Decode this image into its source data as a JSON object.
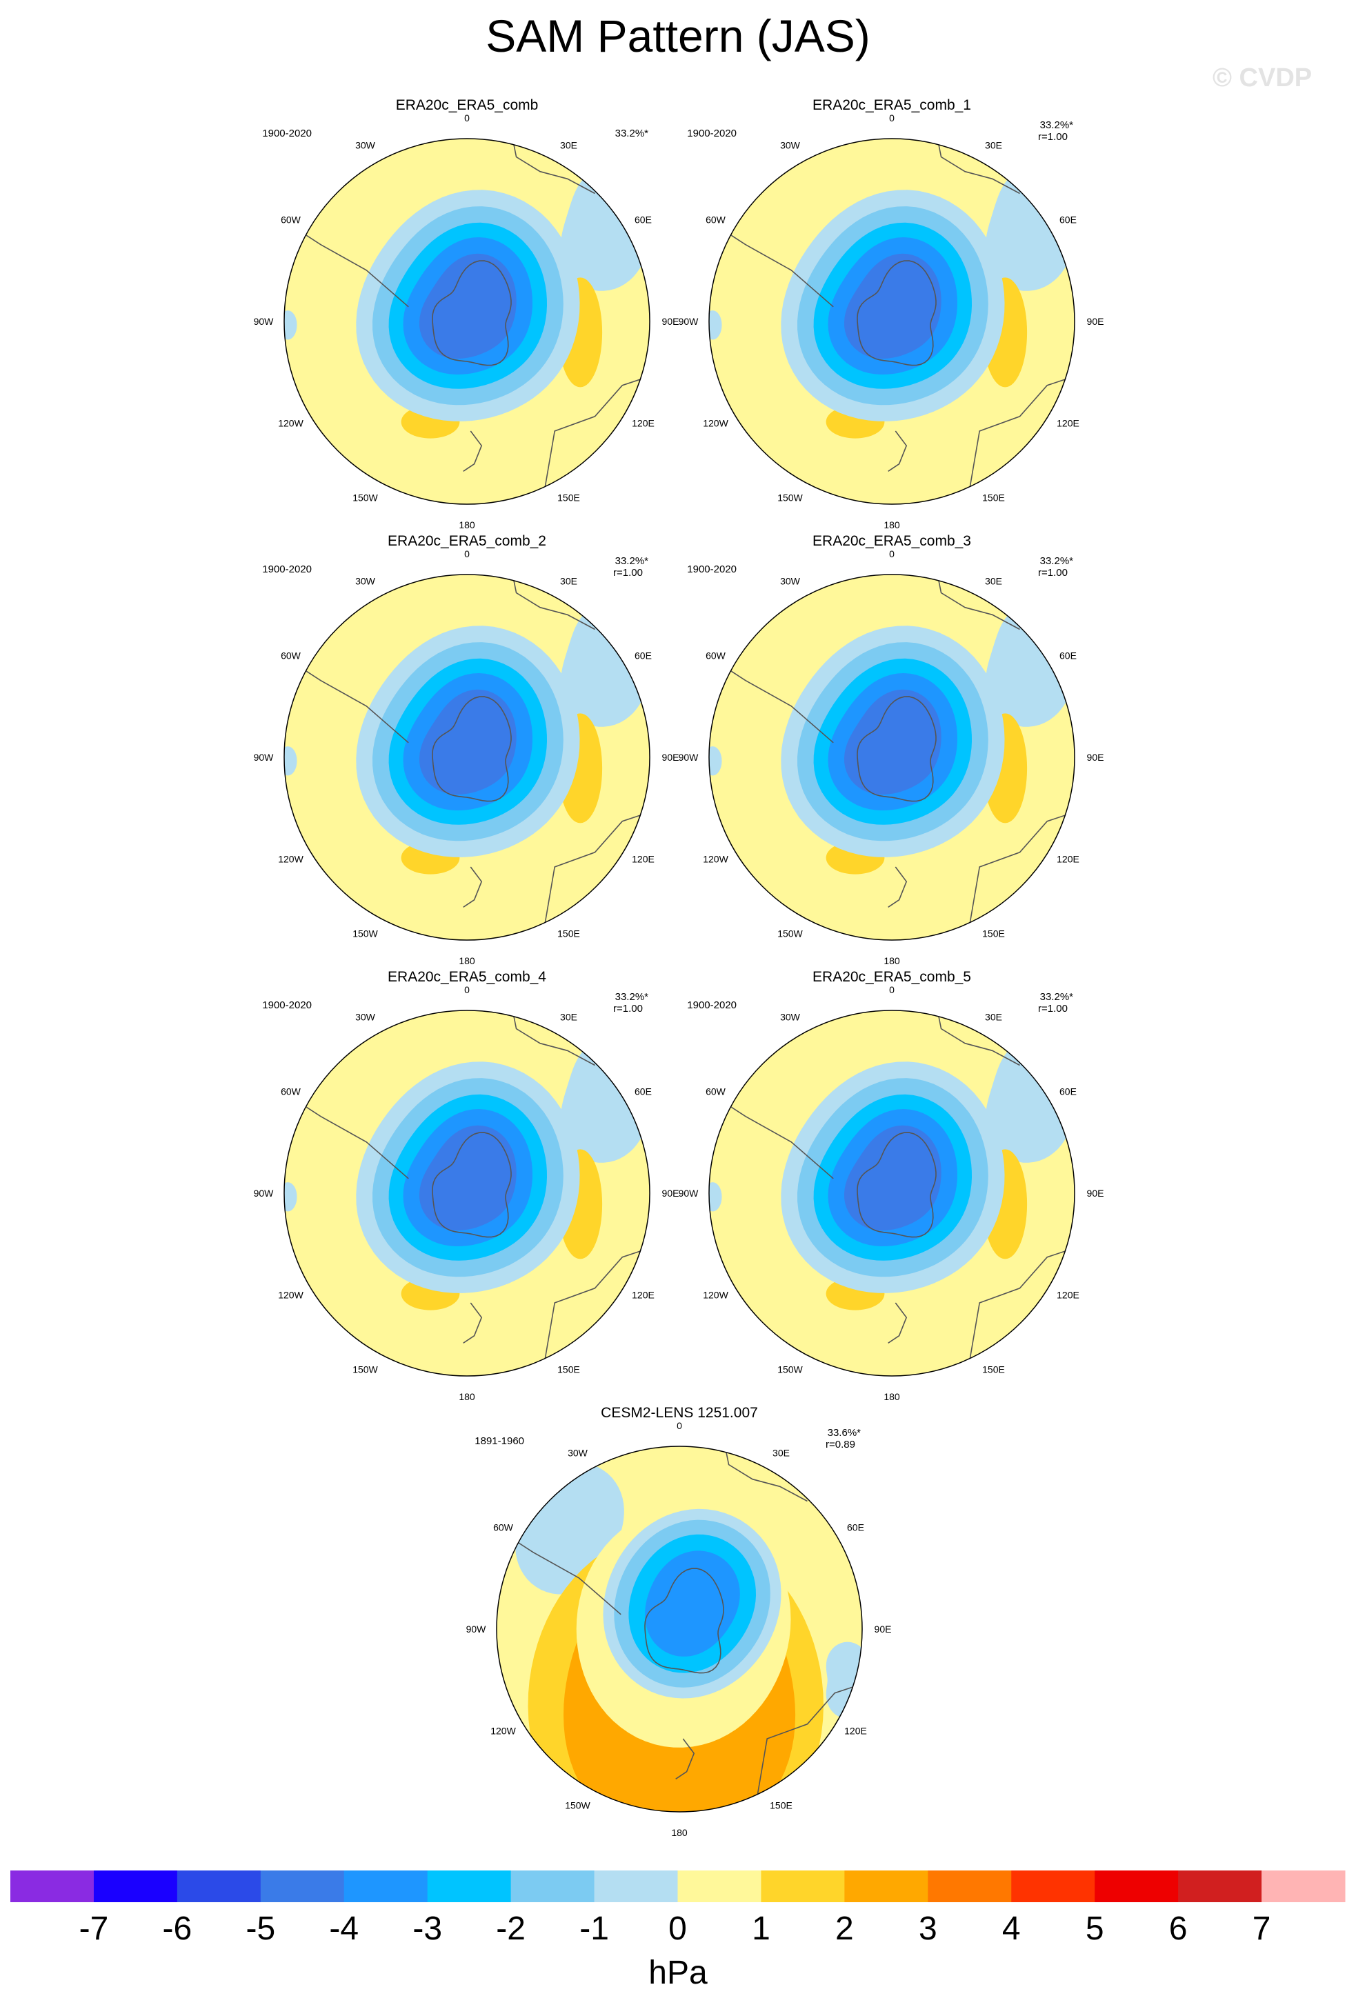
{
  "page": {
    "title": "SAM Pattern (JAS)",
    "watermark": "© CVDP"
  },
  "chart_data": {
    "type": "polar-contour-map-panels",
    "projection": "south-polar stereographic",
    "lon_labels": [
      "0",
      "30E",
      "60E",
      "90E",
      "120E",
      "150E",
      "180",
      "150W",
      "120W",
      "90W",
      "60W",
      "30W"
    ],
    "panels": [
      {
        "title": "ERA20c_ERA5_comb",
        "years": "1900-2020",
        "pct": "33.2%*",
        "r": "",
        "variant": "obs"
      },
      {
        "title": "ERA20c_ERA5_comb_1",
        "years": "1900-2020",
        "pct": "33.2%*",
        "r": "r=1.00",
        "variant": "obs"
      },
      {
        "title": "ERA20c_ERA5_comb_2",
        "years": "1900-2020",
        "pct": "33.2%*",
        "r": "r=1.00",
        "variant": "obs"
      },
      {
        "title": "ERA20c_ERA5_comb_3",
        "years": "1900-2020",
        "pct": "33.2%*",
        "r": "r=1.00",
        "variant": "obs"
      },
      {
        "title": "ERA20c_ERA5_comb_4",
        "years": "1900-2020",
        "pct": "33.2%*",
        "r": "r=1.00",
        "variant": "obs"
      },
      {
        "title": "ERA20c_ERA5_comb_5",
        "years": "1900-2020",
        "pct": "33.2%*",
        "r": "r=1.00",
        "variant": "obs"
      },
      {
        "title": "CESM2-LENS 1251.007",
        "years": "1891-1960",
        "pct": "33.6%*",
        "r": "r=0.89",
        "variant": "model"
      }
    ],
    "colorbar": {
      "label": "hPa",
      "ticks": [
        "-7",
        "-6",
        "-5",
        "-4",
        "-3",
        "-2",
        "-1",
        "0",
        "1",
        "2",
        "3",
        "4",
        "5",
        "6",
        "7"
      ],
      "colors": [
        "#8a2be2",
        "#1a00ff",
        "#2b4ae8",
        "#3a7be8",
        "#1e96ff",
        "#00c4ff",
        "#7ccbf2",
        "#b4def2",
        "#fff89a",
        "#ffd52a",
        "#ffa800",
        "#ff7800",
        "#ff3300",
        "#ee0000",
        "#d11f1f",
        "#ffb4b4"
      ]
    },
    "level_colors": {
      "neg1": "#b4def2",
      "neg2": "#7ccbf2",
      "neg3": "#00c4ff",
      "neg4": "#1e96ff",
      "neg5": "#3a7be8",
      "zero": "#fff89a",
      "pos1": "#ffd52a",
      "pos2": "#ffa800"
    }
  }
}
